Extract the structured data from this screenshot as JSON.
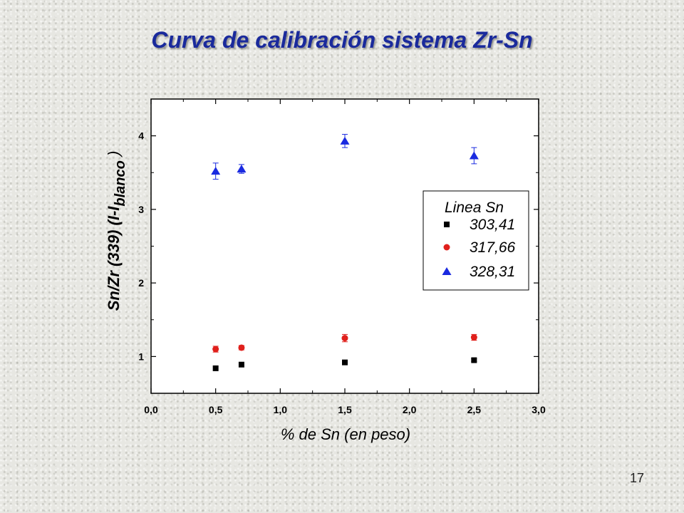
{
  "slide": {
    "title": "Curva de calibración  sistema Zr-Sn",
    "page_number": "17"
  },
  "chart_data": {
    "type": "scatter",
    "xlabel": "% de Sn (en peso)",
    "ylabel_main": "Sn/Zr (339) (I-I",
    "ylabel_sub": "blanco",
    "ylabel_close": " )",
    "xlim": [
      0,
      3
    ],
    "ylim": [
      0.5,
      4.5
    ],
    "x_ticks": [
      0,
      0.5,
      1,
      1.5,
      2,
      2.5,
      3
    ],
    "x_tick_labels": [
      "0,0",
      "0,5",
      "1,0",
      "1,5",
      "2,0",
      "2,5",
      "3,0"
    ],
    "y_ticks": [
      1,
      2,
      3,
      4
    ],
    "y_tick_labels": [
      "1",
      "2",
      "3",
      "4"
    ],
    "legend_title": "Linea Sn",
    "legend_position": "right-middle",
    "grid": false,
    "series": [
      {
        "name": "303,41",
        "marker": "square",
        "color": "#000000",
        "x": [
          0.5,
          0.7,
          1.5,
          2.5
        ],
        "y": [
          0.84,
          0.89,
          0.92,
          0.95
        ],
        "err": [
          0.0,
          0.0,
          0.0,
          0.02
        ]
      },
      {
        "name": "317,66",
        "marker": "circle",
        "color": "#e0201c",
        "x": [
          0.5,
          0.7,
          1.5,
          2.5
        ],
        "y": [
          1.1,
          1.12,
          1.25,
          1.26
        ],
        "err": [
          0.04,
          0.03,
          0.05,
          0.04
        ]
      },
      {
        "name": "328,31",
        "marker": "triangle",
        "color": "#1a2ae0",
        "x": [
          0.5,
          0.7,
          1.5,
          2.5
        ],
        "y": [
          3.52,
          3.55,
          3.93,
          3.73
        ],
        "err": [
          0.11,
          0.06,
          0.09,
          0.11
        ]
      }
    ]
  }
}
